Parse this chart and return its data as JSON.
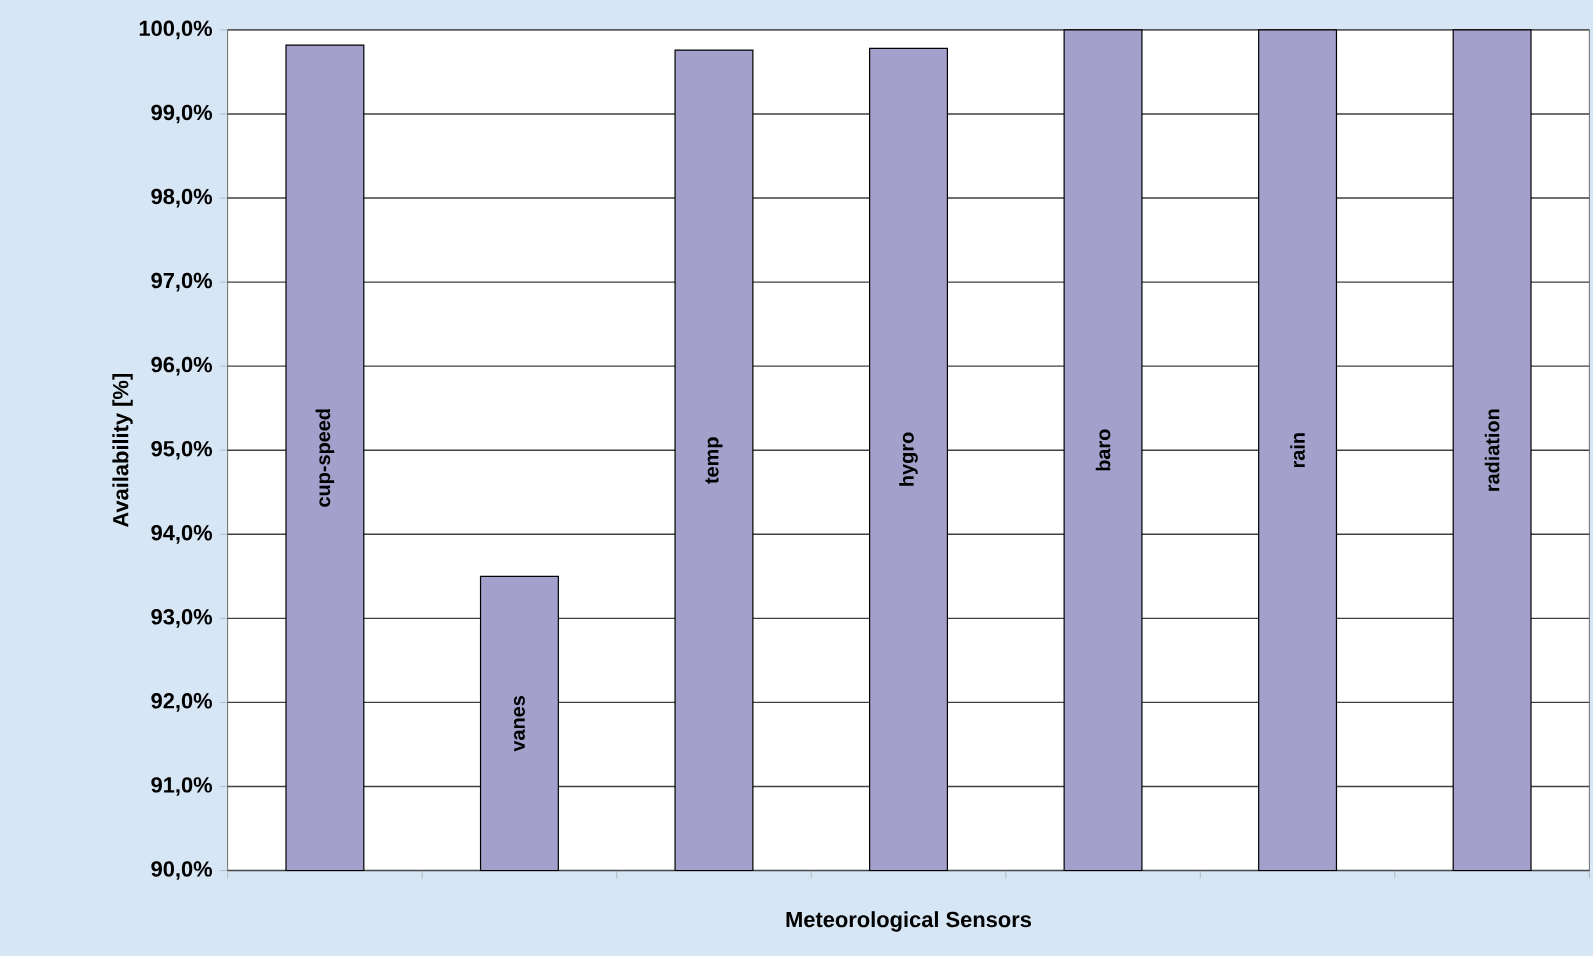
{
  "chart_data": {
    "type": "bar",
    "xlabel": "Meteorological Sensors",
    "ylabel": "Availability [%]",
    "categories": [
      "cup-speed",
      "vanes",
      "temp",
      "hygro",
      "baro",
      "rain",
      "radiation"
    ],
    "values": [
      99.82,
      93.5,
      99.76,
      99.78,
      100,
      100,
      100
    ],
    "color": "#a3a0cb",
    "ylim": [
      90,
      100
    ],
    "yticks": [
      {
        "value": 90,
        "label": "90,0%"
      },
      {
        "value": 91,
        "label": "91,0%"
      },
      {
        "value": 92,
        "label": "92,0%"
      },
      {
        "value": 93,
        "label": "93,0%"
      },
      {
        "value": 94,
        "label": "94,0%"
      },
      {
        "value": 95,
        "label": "95,0%"
      },
      {
        "value": 96,
        "label": "96,0%"
      },
      {
        "value": 97,
        "label": "97,0%"
      },
      {
        "value": 98,
        "label": "98,0%"
      },
      {
        "value": 99,
        "label": "99,0%"
      },
      {
        "value": 100,
        "label": "100,0%"
      }
    ],
    "grid": "y"
  }
}
